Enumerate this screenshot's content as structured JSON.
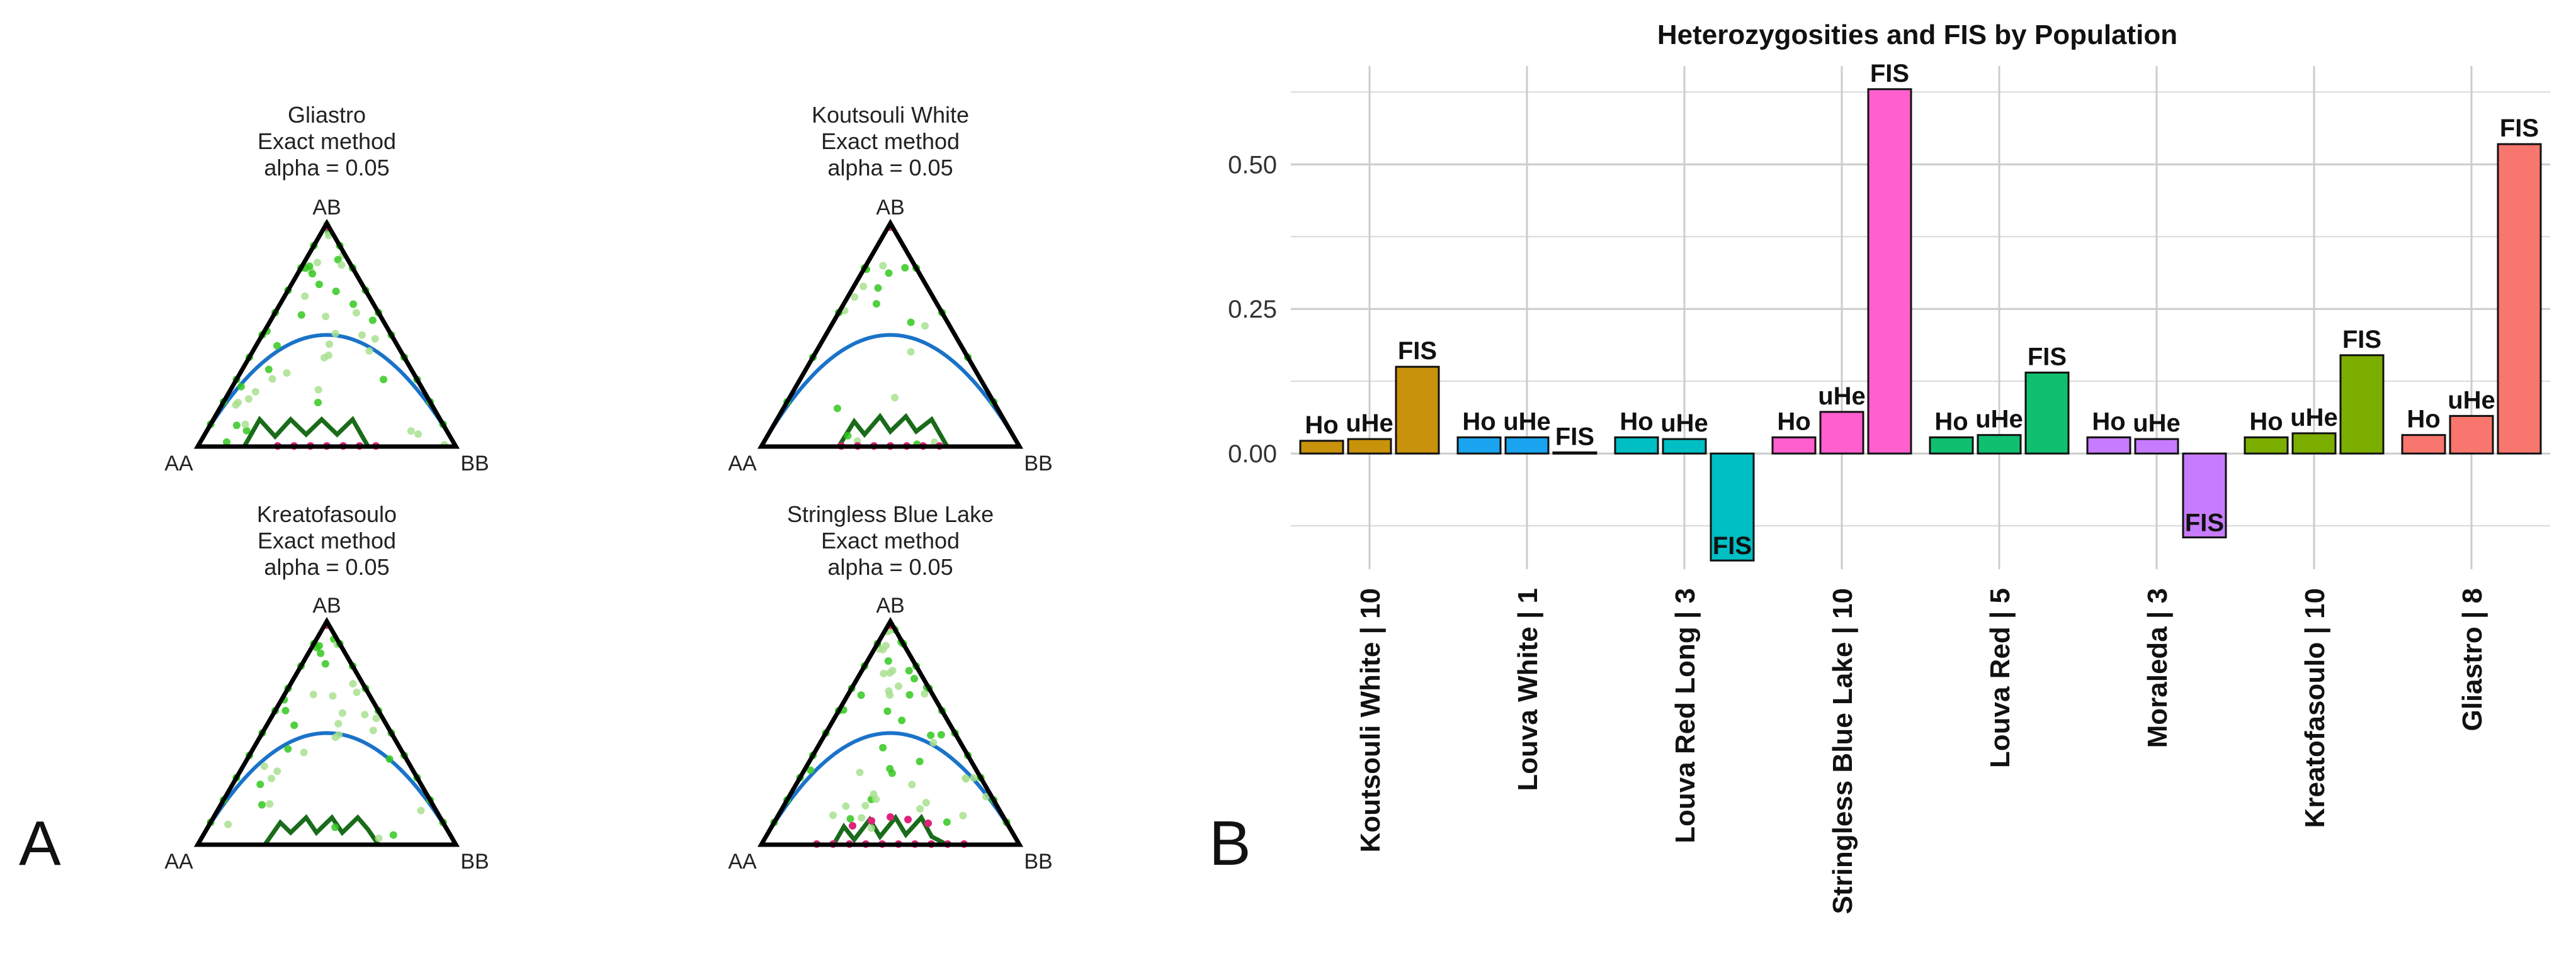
{
  "panel_a": {
    "letter": "A",
    "method_label": "Exact method",
    "alpha_label": "alpha = 0.05",
    "vertex_labels": {
      "top": "AB",
      "left": "AA",
      "right": "BB"
    },
    "colors": {
      "outline": "#000000",
      "hwe_curve": "#1a73c9",
      "accept_band": "#1a6b1a",
      "dot_dark": "#33c81f",
      "dot_light": "#a8e08f",
      "dot_outlier": "#e0227a"
    },
    "plots": [
      {
        "title": "Gliastro"
      },
      {
        "title": "Koutsouli White"
      },
      {
        "title": "Kreatofasoulo"
      },
      {
        "title": "Stringless Blue Lake"
      }
    ]
  },
  "panel_b": {
    "letter": "B"
  },
  "chart_data": {
    "type": "bar",
    "title": "Heterozygosities and FIS by Population",
    "xlabel": "",
    "ylabel": "",
    "ylim": [
      -0.2,
      0.67
    ],
    "yticks": [
      0.0,
      0.25,
      0.5
    ],
    "ytick_labels": [
      "0.00",
      "0.25",
      "0.50"
    ],
    "grid": true,
    "categories": [
      "Koutsouli White | 10",
      "Louva White | 1",
      "Louva Red Long | 3",
      "Stringless Blue Lake | 10",
      "Louva Red | 5",
      "Moraleda | 3",
      "Kreatofasoulo | 10",
      "Gliastro | 8"
    ],
    "series": [
      {
        "name": "Ho",
        "values": [
          0.022,
          0.028,
          0.028,
          0.028,
          0.028,
          0.028,
          0.028,
          0.032
        ]
      },
      {
        "name": "uHe",
        "values": [
          0.025,
          0.028,
          0.025,
          0.072,
          0.032,
          0.025,
          0.035,
          0.065
        ]
      },
      {
        "name": "FIS",
        "values": [
          0.15,
          0.002,
          -0.185,
          0.63,
          0.14,
          -0.145,
          0.17,
          0.535
        ]
      }
    ],
    "bar_labels": [
      [
        "Ho",
        "uHe",
        "FIS"
      ],
      [
        "Ho",
        "uHe",
        "FIS"
      ],
      [
        "Ho",
        "uHe",
        "FIS"
      ],
      [
        "Ho",
        "uHe",
        "FIS"
      ],
      [
        "Ho",
        "uHe",
        "FIS"
      ],
      [
        "Ho",
        "uHe",
        "FIS"
      ],
      [
        "Ho",
        "uHe",
        "FIS"
      ],
      [
        "Ho",
        "uHe",
        "FIS"
      ]
    ],
    "group_colors": [
      "#c8920a",
      "#1aa3ef",
      "#00bfc4",
      "#ff5fcf",
      "#10c070",
      "#c77cff",
      "#7cae00",
      "#f8766d"
    ]
  }
}
